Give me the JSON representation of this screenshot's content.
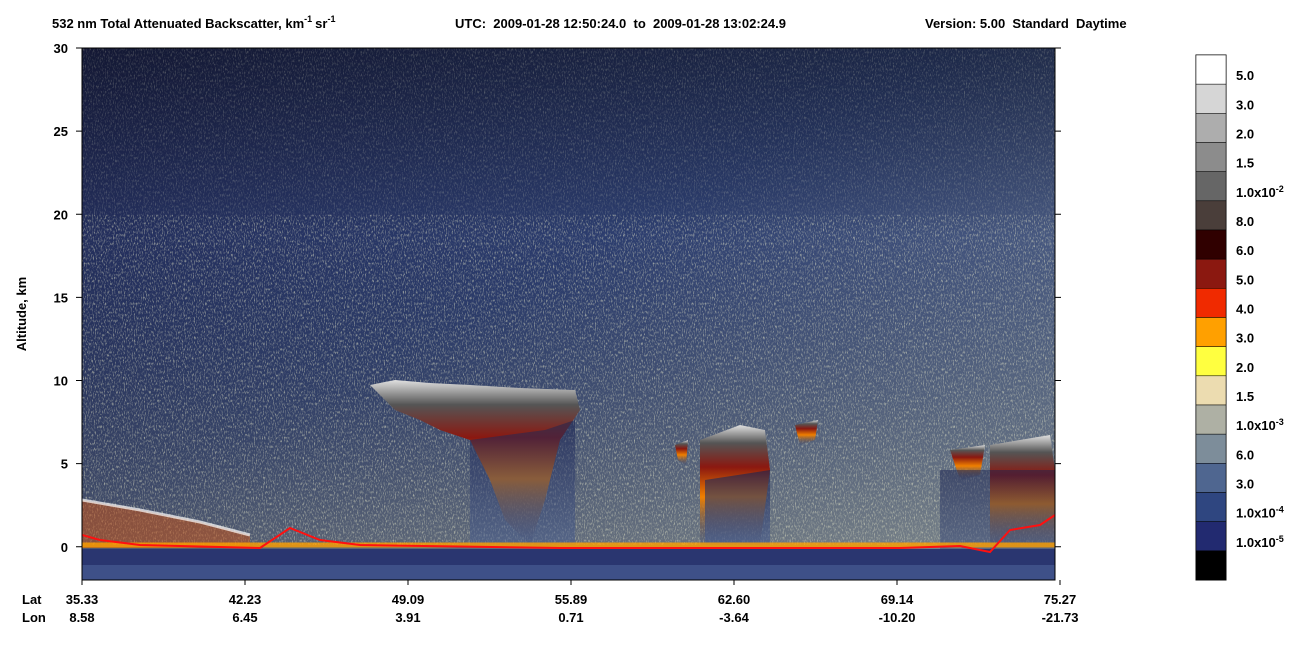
{
  "chart_data": {
    "type": "curtain",
    "title": "532 nm Total Attenuated Backscatter, km",
    "title_exp1": "-1",
    "title_unit2": "sr",
    "title_exp2": "-1",
    "utc": "UTC:  2009-01-28 12:50:24.0  to  2009-01-28 13:02:24.9",
    "version": "Version: 5.00  Standard  Daytime",
    "y_label": "Altitude, km",
    "ylim": [
      -2,
      30
    ],
    "yticks": [
      0,
      5,
      10,
      15,
      20,
      25,
      30
    ],
    "lat_label": "Lat",
    "lon_label": "Lon",
    "lat": [
      "35.33",
      "42.23",
      "49.09",
      "55.89",
      "62.60",
      "69.14",
      "75.27"
    ],
    "lon": [
      "8.58",
      "6.45",
      "3.91",
      "0.71",
      "-3.64",
      "-10.20",
      "-21.73"
    ],
    "colorbar": {
      "colors": [
        "#ffffff",
        "#d6d6d6",
        "#adadad",
        "#8c8c8c",
        "#666666",
        "#4a3e3a",
        "#300000",
        "#8b1810",
        "#f02a00",
        "#ffa000",
        "#ffff40",
        "#ecdcb0",
        "#aeb0a4",
        "#7d8d9a",
        "#4f6690",
        "#2f4680",
        "#222a70",
        "#000000"
      ],
      "labels": [
        "5.0",
        "3.0",
        "2.0",
        "1.5",
        {
          "mantissa": "1.0x10",
          "exponent": "-2"
        },
        "8.0",
        "6.0",
        "5.0",
        "4.0",
        "3.0",
        "2.0",
        "1.5",
        {
          "mantissa": "1.0x10",
          "exponent": "-3"
        },
        "6.0",
        "3.0",
        {
          "mantissa": "1.0x10",
          "exponent": "-4"
        },
        {
          "mantissa": "1.0x10",
          "exponent": "-5"
        }
      ]
    }
  }
}
